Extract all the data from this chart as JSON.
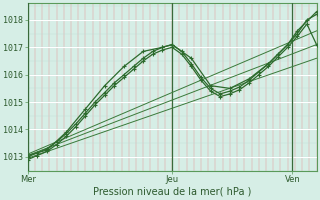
{
  "title": "Pression niveau de la mer( hPa )",
  "ylabel_vals": [
    1013,
    1014,
    1015,
    1016,
    1017,
    1018
  ],
  "ylim": [
    1012.5,
    1018.6
  ],
  "xlim": [
    0,
    60
  ],
  "xtick_positions": [
    0,
    30,
    55
  ],
  "xtick_labels": [
    "Mer",
    "Jeu",
    "Ven"
  ],
  "vline_positions": [
    0,
    30,
    55
  ],
  "bg_color": "#d6eee6",
  "grid_major_h_color": "#ffffff",
  "grid_minor_v_color": "#e87878",
  "line_color": "#2d6b2d",
  "line_color_thin": "#3a7a3a",
  "lines": [
    {
      "x": [
        0,
        2,
        4,
        6,
        8,
        10,
        12,
        14,
        16,
        18,
        20,
        22,
        24,
        26,
        28,
        30,
        32,
        34,
        36,
        38,
        40,
        42,
        44,
        46,
        48,
        50,
        52,
        54,
        56,
        58,
        60
      ],
      "y": [
        1013.0,
        1013.15,
        1013.3,
        1013.55,
        1013.85,
        1014.2,
        1014.6,
        1015.0,
        1015.35,
        1015.7,
        1016.0,
        1016.3,
        1016.6,
        1016.85,
        1017.0,
        1017.1,
        1016.85,
        1016.4,
        1015.9,
        1015.5,
        1015.3,
        1015.4,
        1015.55,
        1015.8,
        1016.1,
        1016.4,
        1016.75,
        1017.1,
        1017.5,
        1018.0,
        1018.2
      ],
      "style": "marker"
    },
    {
      "x": [
        0,
        2,
        4,
        6,
        8,
        10,
        12,
        14,
        16,
        18,
        20,
        22,
        24,
        26,
        28,
        30,
        32,
        34,
        36,
        38,
        40,
        42,
        44,
        46,
        48,
        50,
        52,
        54,
        56,
        58,
        60
      ],
      "y": [
        1012.9,
        1013.05,
        1013.2,
        1013.45,
        1013.75,
        1014.1,
        1014.5,
        1014.9,
        1015.25,
        1015.6,
        1015.9,
        1016.2,
        1016.5,
        1016.75,
        1016.9,
        1017.0,
        1016.75,
        1016.3,
        1015.8,
        1015.4,
        1015.2,
        1015.3,
        1015.45,
        1015.7,
        1016.0,
        1016.3,
        1016.65,
        1017.0,
        1017.4,
        1017.85,
        1017.1
      ],
      "style": "marker"
    },
    {
      "x": [
        0,
        4,
        8,
        12,
        16,
        20,
        24,
        28,
        30,
        34,
        38,
        42,
        46,
        50,
        54,
        56,
        60
      ],
      "y": [
        1013.05,
        1013.25,
        1013.9,
        1014.75,
        1015.6,
        1016.3,
        1016.85,
        1017.0,
        1017.1,
        1016.6,
        1015.6,
        1015.5,
        1015.85,
        1016.4,
        1017.1,
        1017.6,
        1018.3
      ],
      "style": "marker"
    },
    {
      "x": [
        0,
        60
      ],
      "y": [
        1013.05,
        1017.1
      ],
      "style": "thin"
    },
    {
      "x": [
        0,
        60
      ],
      "y": [
        1012.95,
        1016.6
      ],
      "style": "thin"
    },
    {
      "x": [
        0,
        60
      ],
      "y": [
        1013.1,
        1017.6
      ],
      "style": "thin"
    }
  ]
}
